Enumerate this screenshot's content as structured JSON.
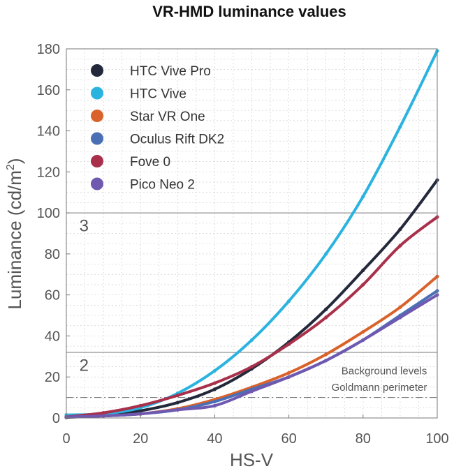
{
  "chart_data": {
    "type": "line",
    "title": "VR-HMD luminance values",
    "xlabel": "HS-V",
    "ylabel": {
      "text": "Luminance (cd/m",
      "superscript": "2",
      "suffix": ")"
    },
    "xlim": [
      0,
      100
    ],
    "ylim": [
      0,
      180
    ],
    "xticks": [
      0,
      20,
      40,
      60,
      80,
      100
    ],
    "yticks": [
      0,
      20,
      40,
      60,
      80,
      100,
      120,
      140,
      160,
      180
    ],
    "grid": true,
    "legend_position": "top-left",
    "series": [
      {
        "name": "HTC Vive Pro",
        "color": "#23283a",
        "x": [
          0,
          10,
          20,
          30,
          40,
          50,
          60,
          70,
          80,
          90,
          100
        ],
        "values": [
          0.3,
          1.2,
          3.5,
          7.5,
          14,
          24,
          37,
          53,
          72,
          92,
          116
        ]
      },
      {
        "name": "HTC Vive",
        "color": "#2bb3e0",
        "x": [
          0,
          10,
          20,
          30,
          40,
          50,
          60,
          70,
          80,
          90,
          100
        ],
        "values": [
          1.5,
          2,
          5,
          12,
          23,
          38,
          57,
          80,
          108,
          142,
          179
        ]
      },
      {
        "name": "Star VR One",
        "color": "#d9622b",
        "x": [
          0,
          10,
          20,
          30,
          40,
          50,
          60,
          70,
          80,
          90,
          100
        ],
        "values": [
          0.5,
          1,
          2,
          4.5,
          9,
          15,
          22,
          31,
          42,
          54,
          69
        ]
      },
      {
        "name": "Oculus Rift DK2",
        "color": "#4a6fb5",
        "x": [
          0,
          10,
          20,
          30,
          40,
          50,
          60,
          70,
          80,
          90,
          100
        ],
        "values": [
          0.5,
          1,
          2,
          4,
          8,
          14,
          20,
          28,
          38,
          50,
          62
        ]
      },
      {
        "name": "Fove 0",
        "color": "#a8304a",
        "x": [
          0,
          10,
          20,
          30,
          40,
          50,
          60,
          70,
          80,
          90,
          100
        ],
        "values": [
          0.5,
          2.5,
          6,
          11,
          17,
          25,
          36,
          49,
          65,
          84,
          98
        ]
      },
      {
        "name": "Pico Neo 2",
        "color": "#6f58b0",
        "x": [
          0,
          10,
          20,
          30,
          40,
          50,
          60,
          70,
          80,
          90,
          100
        ],
        "values": [
          0.5,
          1,
          2,
          4,
          6,
          13,
          20,
          28,
          38,
          49,
          60
        ]
      }
    ],
    "reference_lines": [
      {
        "y": 100,
        "style": "solid",
        "color": "#777777"
      },
      {
        "y": 32,
        "style": "solid",
        "color": "#777777"
      },
      {
        "y": 10,
        "style": "dashdot",
        "color": "#666666"
      }
    ],
    "annotations": [
      {
        "text": "3",
        "x": 2,
        "y": 91
      },
      {
        "text": "2",
        "x": 2,
        "y": 23
      },
      {
        "text": "Background levels",
        "x": 98,
        "y": 23
      },
      {
        "text": "Goldmann perimeter",
        "x": 98,
        "y": 15
      }
    ]
  }
}
